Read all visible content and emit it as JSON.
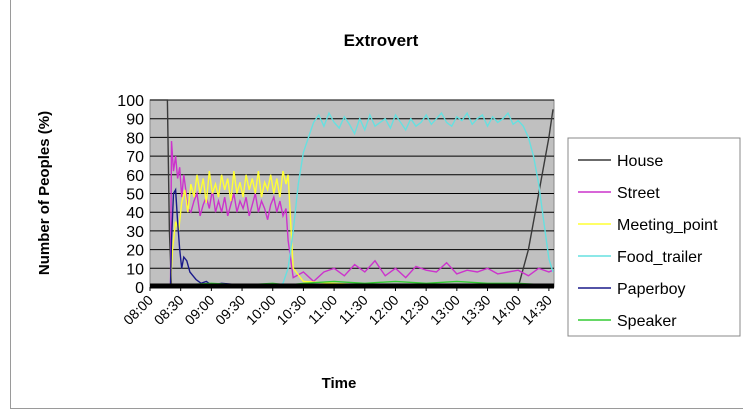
{
  "chart_data": {
    "type": "line",
    "title": "Extrovert",
    "xlabel": "Time",
    "ylabel": "Number of Peoples (%)",
    "ylim": [
      0,
      100
    ],
    "yticks": [
      "0",
      "10",
      "20",
      "30",
      "40",
      "50",
      "60",
      "70",
      "80",
      "90",
      "100"
    ],
    "xticks": [
      "08:00",
      "08:30",
      "09:00",
      "09:30",
      "10:00",
      "10:30",
      "11:00",
      "11:30",
      "12:00",
      "12:30",
      "13:00",
      "13:30",
      "14:00",
      "14:30"
    ],
    "grid": "horizontal",
    "plot_background": "#c0c0c0",
    "legend_position": "right",
    "series": [
      {
        "name": "House",
        "color": "#3a3a3a",
        "x": [
          "08:00",
          "08:17",
          "08:19",
          "08:21",
          "08:30",
          "14:00",
          "14:10",
          "14:20",
          "14:30",
          "14:34"
        ],
        "y": [
          100,
          100,
          30,
          0,
          0,
          0,
          20,
          50,
          80,
          95
        ]
      },
      {
        "name": "Street",
        "color": "#cc33cc",
        "x": [
          "08:00",
          "08:20",
          "08:21",
          "08:23",
          "08:25",
          "08:27",
          "08:29",
          "08:31",
          "08:33",
          "08:35",
          "08:37",
          "08:40",
          "08:43",
          "08:46",
          "08:49",
          "08:52",
          "08:55",
          "08:58",
          "09:01",
          "09:04",
          "09:07",
          "09:10",
          "09:13",
          "09:16",
          "09:19",
          "09:22",
          "09:25",
          "09:28",
          "09:31",
          "09:34",
          "09:37",
          "09:40",
          "09:43",
          "09:46",
          "09:49",
          "09:52",
          "09:55",
          "09:58",
          "10:01",
          "10:04",
          "10:07",
          "10:10",
          "10:13",
          "10:15",
          "10:20",
          "10:30",
          "10:40",
          "10:50",
          "11:00",
          "11:10",
          "11:20",
          "11:30",
          "11:40",
          "11:50",
          "12:00",
          "12:10",
          "12:20",
          "12:30",
          "12:40",
          "12:50",
          "13:00",
          "13:10",
          "13:20",
          "13:30",
          "13:40",
          "13:50",
          "14:00",
          "14:10",
          "14:20",
          "14:30",
          "14:34"
        ],
        "y": [
          0,
          0,
          78,
          62,
          70,
          58,
          64,
          48,
          60,
          52,
          42,
          40,
          46,
          50,
          38,
          44,
          48,
          42,
          52,
          40,
          46,
          40,
          48,
          38,
          44,
          50,
          40,
          46,
          42,
          48,
          38,
          44,
          50,
          40,
          46,
          42,
          36,
          44,
          48,
          40,
          46,
          38,
          42,
          25,
          5,
          8,
          3,
          8,
          10,
          6,
          12,
          8,
          14,
          6,
          10,
          5,
          11,
          9,
          8,
          13,
          7,
          9,
          8,
          10,
          7,
          8,
          9,
          6,
          10,
          8,
          9
        ]
      },
      {
        "name": "Meeting_point",
        "color": "#ffff33",
        "x": [
          "08:00",
          "08:20",
          "08:22",
          "08:25",
          "08:28",
          "08:31",
          "08:34",
          "08:37",
          "08:40",
          "08:43",
          "08:46",
          "08:49",
          "08:52",
          "08:55",
          "08:58",
          "09:01",
          "09:04",
          "09:07",
          "09:10",
          "09:13",
          "09:16",
          "09:19",
          "09:22",
          "09:25",
          "09:28",
          "09:31",
          "09:34",
          "09:37",
          "09:40",
          "09:43",
          "09:46",
          "09:49",
          "09:52",
          "09:55",
          "09:58",
          "10:01",
          "10:04",
          "10:07",
          "10:10",
          "10:13",
          "10:15",
          "10:20",
          "10:30",
          "11:00",
          "11:30",
          "12:00",
          "12:30",
          "13:00",
          "13:30",
          "14:00",
          "14:30",
          "14:34"
        ],
        "y": [
          0,
          0,
          20,
          35,
          30,
          45,
          52,
          40,
          55,
          48,
          60,
          50,
          58,
          45,
          62,
          50,
          55,
          48,
          60,
          52,
          58,
          46,
          62,
          50,
          56,
          48,
          60,
          52,
          58,
          50,
          62,
          48,
          56,
          52,
          60,
          50,
          58,
          48,
          62,
          55,
          60,
          10,
          3,
          2,
          1,
          1,
          1,
          1,
          1,
          1,
          1,
          1
        ]
      },
      {
        "name": "Food_trailer",
        "color": "#66e0e0",
        "x": [
          "08:00",
          "10:05",
          "10:10",
          "10:15",
          "10:20",
          "10:25",
          "10:30",
          "10:35",
          "10:40",
          "10:45",
          "10:50",
          "10:55",
          "11:00",
          "11:05",
          "11:10",
          "11:15",
          "11:20",
          "11:25",
          "11:30",
          "11:35",
          "11:40",
          "11:45",
          "11:50",
          "11:55",
          "12:00",
          "12:05",
          "12:10",
          "12:15",
          "12:20",
          "12:25",
          "12:30",
          "12:35",
          "12:40",
          "12:45",
          "12:50",
          "12:55",
          "13:00",
          "13:05",
          "13:10",
          "13:15",
          "13:20",
          "13:25",
          "13:30",
          "13:35",
          "13:40",
          "13:45",
          "13:50",
          "13:55",
          "14:00",
          "14:05",
          "14:10",
          "14:15",
          "14:20",
          "14:25",
          "14:30",
          "14:34"
        ],
        "y": [
          0,
          0,
          2,
          10,
          30,
          55,
          72,
          80,
          88,
          92,
          86,
          93,
          88,
          85,
          91,
          87,
          82,
          90,
          84,
          92,
          86,
          88,
          90,
          85,
          92,
          88,
          84,
          90,
          86,
          88,
          92,
          87,
          90,
          93,
          88,
          86,
          91,
          89,
          93,
          87,
          90,
          92,
          86,
          91,
          88,
          90,
          93,
          87,
          89,
          86,
          80,
          70,
          55,
          35,
          15,
          8
        ]
      },
      {
        "name": "Paperboy",
        "color": "#1a1a8a",
        "x": [
          "08:00",
          "08:20",
          "08:21",
          "08:23",
          "08:25",
          "08:27",
          "08:29",
          "08:31",
          "08:33",
          "08:36",
          "08:39",
          "08:42",
          "08:45",
          "08:50",
          "08:55",
          "09:00",
          "09:10",
          "09:30",
          "10:00",
          "10:30",
          "14:30",
          "14:34"
        ],
        "y": [
          0,
          0,
          25,
          50,
          52,
          35,
          20,
          10,
          16,
          14,
          8,
          6,
          4,
          2,
          3,
          1,
          2,
          1,
          1,
          0,
          0,
          0
        ]
      },
      {
        "name": "Speaker",
        "color": "#33cc33",
        "x": [
          "08:00",
          "08:20",
          "08:30",
          "09:00",
          "09:30",
          "10:00",
          "10:15",
          "10:30",
          "11:00",
          "11:30",
          "12:00",
          "12:30",
          "13:00",
          "13:30",
          "14:00",
          "14:30",
          "14:34"
        ],
        "y": [
          0,
          0,
          1,
          2,
          1,
          2,
          1,
          2,
          3,
          2,
          3,
          2,
          3,
          2,
          2,
          1,
          1
        ]
      }
    ]
  }
}
